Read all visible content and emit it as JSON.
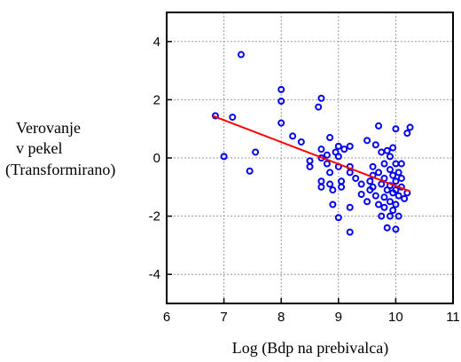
{
  "chart_data": {
    "type": "scatter",
    "title": "",
    "xlabel": "Log (Bdp na prebivalca)",
    "ylabel_lines": [
      "Verovanje",
      "v pekel",
      "(Transformirano)"
    ],
    "xlim": [
      6,
      11
    ],
    "ylim": [
      -5,
      5
    ],
    "x_ticks": [
      6,
      7,
      8,
      9,
      10,
      11
    ],
    "y_ticks": [
      -4,
      -2,
      0,
      2,
      4
    ],
    "grid": true,
    "colors": {
      "points": "#0000ee",
      "fit_line": "#ff0000",
      "grid": "#999999"
    },
    "series": [
      {
        "kind": "points",
        "points": [
          [
            6.85,
            1.45
          ],
          [
            7.0,
            0.05
          ],
          [
            7.15,
            1.4
          ],
          [
            7.3,
            3.55
          ],
          [
            7.45,
            -0.45
          ],
          [
            7.55,
            0.2
          ],
          [
            8.0,
            2.35
          ],
          [
            8.0,
            1.95
          ],
          [
            8.0,
            1.2
          ],
          [
            8.2,
            0.75
          ],
          [
            8.35,
            0.55
          ],
          [
            8.5,
            -0.1
          ],
          [
            8.5,
            -0.3
          ],
          [
            8.65,
            1.75
          ],
          [
            8.7,
            2.05
          ],
          [
            8.7,
            0.3
          ],
          [
            8.7,
            0.0
          ],
          [
            8.7,
            -0.8
          ],
          [
            8.7,
            -1.0
          ],
          [
            8.8,
            0.1
          ],
          [
            8.8,
            -0.2
          ],
          [
            8.85,
            0.7
          ],
          [
            8.85,
            -0.5
          ],
          [
            8.85,
            -0.9
          ],
          [
            8.9,
            -1.1
          ],
          [
            8.9,
            -1.6
          ],
          [
            8.95,
            0.2
          ],
          [
            9.0,
            0.4
          ],
          [
            9.0,
            0.05
          ],
          [
            9.0,
            -0.3
          ],
          [
            9.0,
            -2.05
          ],
          [
            9.05,
            -0.8
          ],
          [
            9.05,
            -1.0
          ],
          [
            9.1,
            0.3
          ],
          [
            9.2,
            0.4
          ],
          [
            9.2,
            -0.3
          ],
          [
            9.2,
            -0.5
          ],
          [
            9.2,
            -1.7
          ],
          [
            9.2,
            -2.55
          ],
          [
            9.3,
            -0.7
          ],
          [
            9.4,
            -0.9
          ],
          [
            9.4,
            -1.25
          ],
          [
            9.5,
            0.6
          ],
          [
            9.5,
            -1.5
          ],
          [
            9.55,
            -0.8
          ],
          [
            9.55,
            -1.1
          ],
          [
            9.6,
            -0.3
          ],
          [
            9.6,
            -0.6
          ],
          [
            9.6,
            -1.0
          ],
          [
            9.65,
            0.45
          ],
          [
            9.65,
            -1.3
          ],
          [
            9.7,
            1.1
          ],
          [
            9.7,
            -0.5
          ],
          [
            9.7,
            -1.6
          ],
          [
            9.75,
            0.2
          ],
          [
            9.75,
            -0.9
          ],
          [
            9.75,
            -2.0
          ],
          [
            9.8,
            -0.2
          ],
          [
            9.8,
            -0.7
          ],
          [
            9.8,
            -1.35
          ],
          [
            9.8,
            -1.7
          ],
          [
            9.85,
            0.25
          ],
          [
            9.85,
            -1.1
          ],
          [
            9.85,
            -2.4
          ],
          [
            9.9,
            0.05
          ],
          [
            9.9,
            -0.4
          ],
          [
            9.9,
            -0.95
          ],
          [
            9.9,
            -1.5
          ],
          [
            9.9,
            -2.0
          ],
          [
            9.95,
            0.35
          ],
          [
            9.95,
            -0.6
          ],
          [
            9.95,
            -1.2
          ],
          [
            9.95,
            -1.8
          ],
          [
            10.0,
            1.0
          ],
          [
            10.0,
            -0.2
          ],
          [
            10.0,
            -0.8
          ],
          [
            10.0,
            -1.1
          ],
          [
            10.0,
            -1.6
          ],
          [
            10.0,
            -2.45
          ],
          [
            10.05,
            -0.5
          ],
          [
            10.05,
            -1.3
          ],
          [
            10.05,
            -2.0
          ],
          [
            10.1,
            -0.2
          ],
          [
            10.1,
            -0.7
          ],
          [
            10.1,
            -1.0
          ],
          [
            10.15,
            -1.4
          ],
          [
            10.2,
            0.85
          ],
          [
            10.25,
            1.05
          ],
          [
            10.2,
            -1.2
          ]
        ]
      },
      {
        "kind": "fit_line",
        "points": [
          [
            6.8,
            1.45
          ],
          [
            10.25,
            -1.15
          ]
        ]
      }
    ]
  }
}
